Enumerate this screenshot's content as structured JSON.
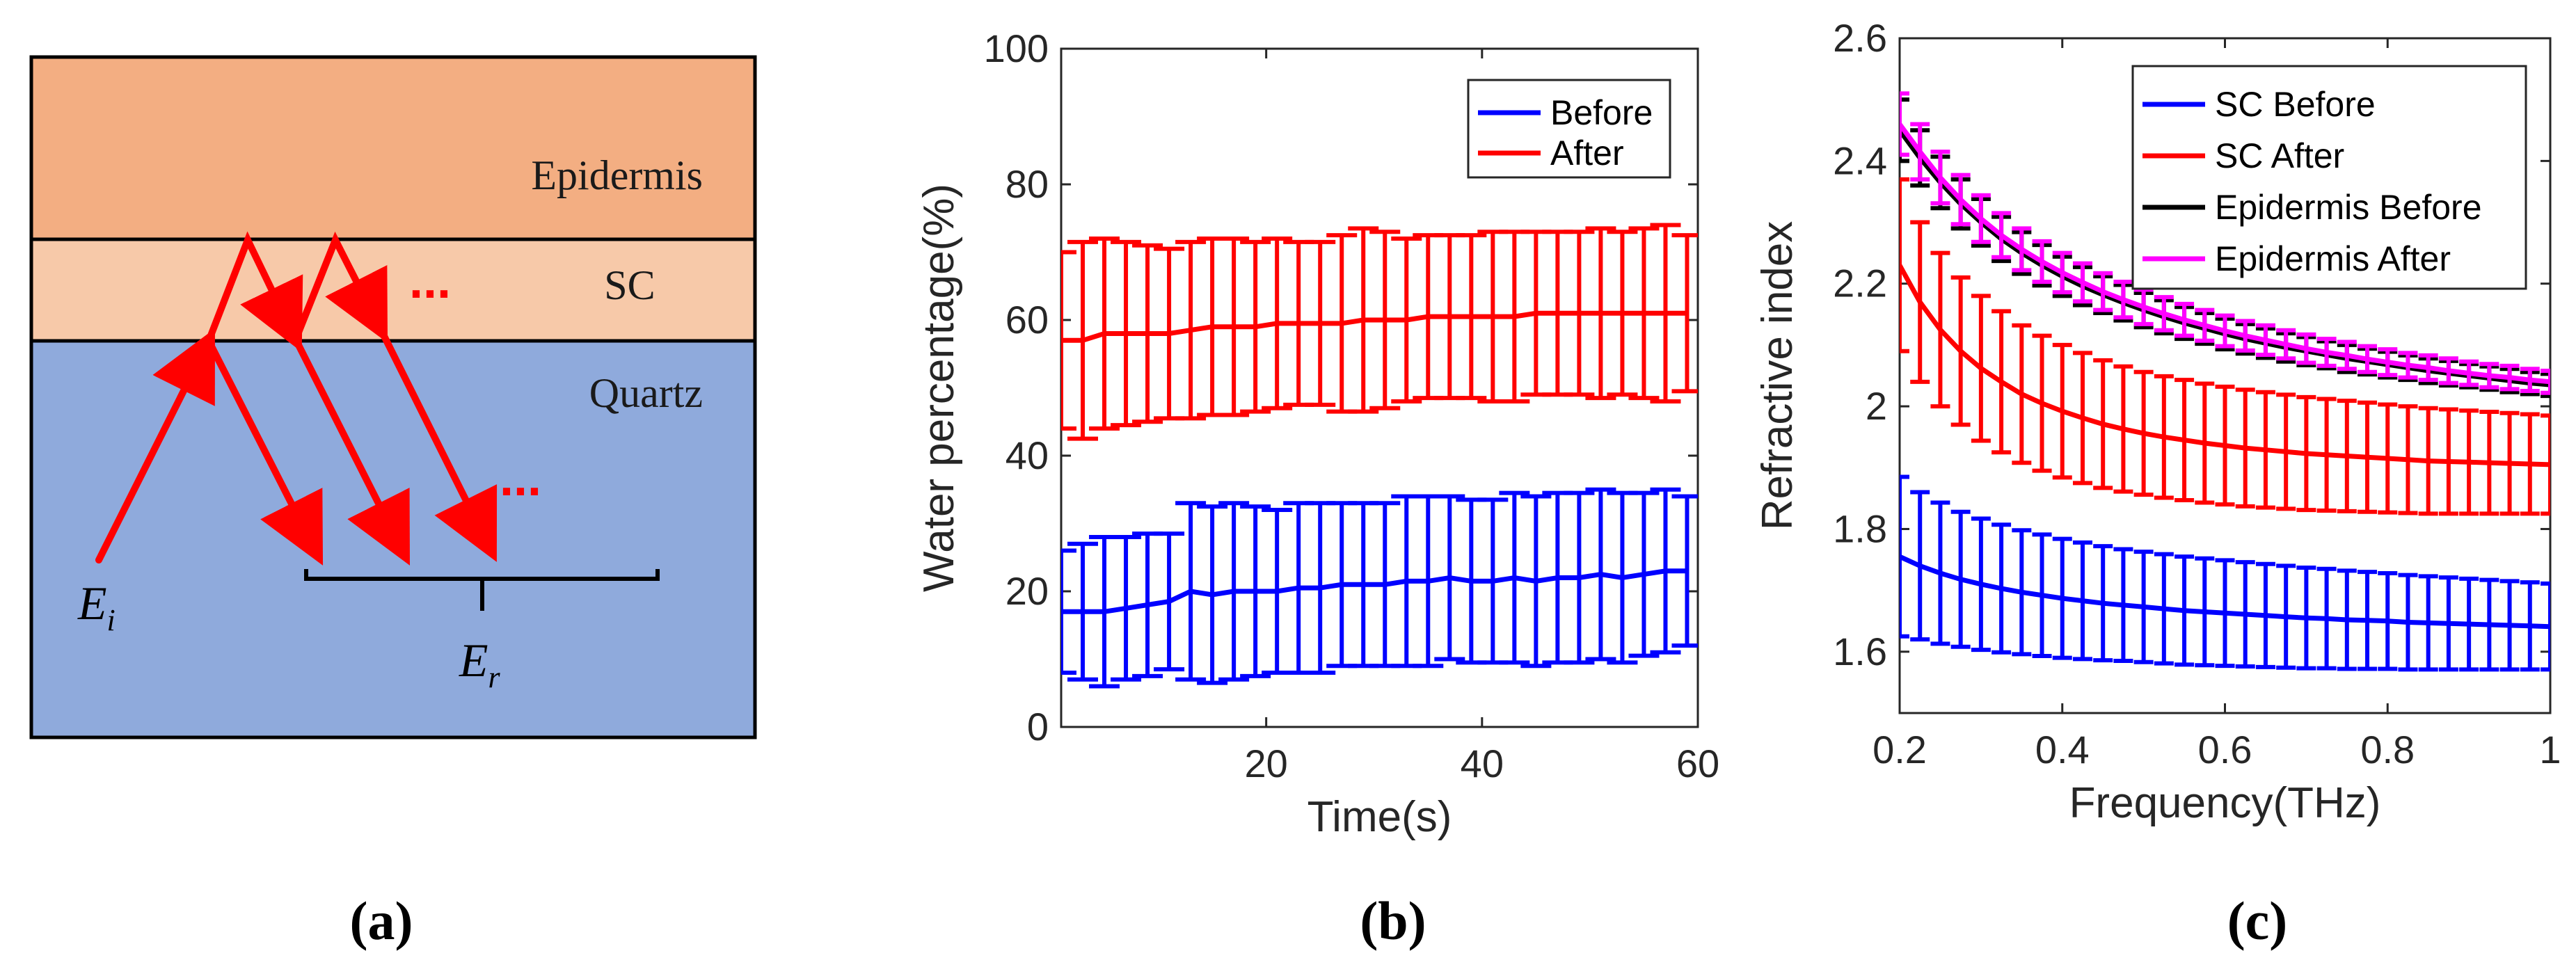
{
  "panel_a": {
    "layers": [
      "Epidermis",
      "SC",
      "Quartz"
    ],
    "ellipsis": "...",
    "incident_label": "E",
    "incident_sub": "i",
    "reflected_label": "E",
    "reflected_sub": "r",
    "colors": {
      "epidermis": "#f3ae82",
      "sc": "#f7c9a9",
      "quartz": "#8faadc",
      "ray": "#ff0000"
    },
    "caption": "(a)"
  },
  "panel_b": {
    "caption": "(b)"
  },
  "panel_c": {
    "caption": "(c)"
  },
  "chart_data": [
    {
      "type": "line",
      "title": "",
      "xlabel": "Time(s)",
      "ylabel": "Water percentage(%)",
      "xlim": [
        1,
        60
      ],
      "ylim": [
        0,
        100
      ],
      "xticks": [
        20,
        40,
        60
      ],
      "yticks": [
        0,
        20,
        40,
        60,
        80,
        100
      ],
      "legend_position": "top-right",
      "error_bars": true,
      "x": [
        1,
        3,
        5,
        7,
        9,
        11,
        13,
        15,
        17,
        19,
        21,
        23,
        25,
        27,
        29,
        31,
        33,
        35,
        37,
        39,
        41,
        43,
        45,
        47,
        49,
        51,
        53,
        55,
        57,
        59
      ],
      "series": [
        {
          "name": "Before",
          "color": "#0000ff",
          "values": [
            17,
            17,
            17,
            17.5,
            18,
            18.5,
            20,
            19.5,
            20,
            20,
            20,
            20.5,
            20.5,
            21,
            21,
            21,
            21.5,
            21.5,
            22,
            21.5,
            21.5,
            22,
            21.5,
            22,
            22,
            22.5,
            22,
            22.5,
            23,
            23
          ],
          "err": [
            9,
            10,
            11,
            10.5,
            10.5,
            10,
            13,
            13,
            13,
            12.5,
            12,
            12.5,
            12.5,
            12,
            12,
            12,
            12.5,
            12.5,
            12,
            12,
            12,
            12.5,
            12.5,
            12.5,
            12.5,
            12.5,
            12.5,
            12,
            12,
            11
          ]
        },
        {
          "name": "After",
          "color": "#ff0000",
          "values": [
            57,
            57,
            58,
            58,
            58,
            58,
            58.5,
            59,
            59,
            59,
            59.5,
            59.5,
            59.5,
            59.5,
            60,
            60,
            60,
            60.5,
            60.5,
            60.5,
            60.5,
            60.5,
            61,
            61,
            61,
            61,
            61,
            61,
            61,
            61
          ],
          "err": [
            13,
            14.5,
            14,
            13.5,
            13,
            12.5,
            13,
            13,
            13,
            12.5,
            12.5,
            12,
            12,
            13,
            13.5,
            13,
            12,
            12,
            12,
            12,
            12.5,
            12.5,
            12,
            12,
            12,
            12.5,
            12,
            12.5,
            13,
            11.5
          ]
        }
      ]
    },
    {
      "type": "line",
      "title": "",
      "xlabel": "Frequency(THz)",
      "ylabel": "Refractive index",
      "xlim": [
        0.2,
        1
      ],
      "ylim": [
        1.5,
        2.6
      ],
      "xticks": [
        0.2,
        0.4,
        0.6,
        0.8,
        1
      ],
      "xtick_labels": [
        "0.2",
        "0.4",
        "0.6",
        "0.8",
        "1"
      ],
      "yticks": [
        1.6,
        1.8,
        2,
        2.2,
        2.4,
        2.6
      ],
      "ytick_labels": [
        "1.6",
        "1.8",
        "2",
        "2.2",
        "2.4",
        "2.6"
      ],
      "legend_position": "top-right",
      "error_bars": true,
      "x": [
        0.2,
        0.225,
        0.25,
        0.275,
        0.3,
        0.325,
        0.35,
        0.375,
        0.4,
        0.425,
        0.45,
        0.475,
        0.5,
        0.525,
        0.55,
        0.575,
        0.6,
        0.625,
        0.65,
        0.675,
        0.7,
        0.725,
        0.75,
        0.775,
        0.8,
        0.825,
        0.85,
        0.875,
        0.9,
        0.925,
        0.95,
        0.975,
        1.0
      ],
      "series": [
        {
          "name": "SC Before",
          "color": "#0000ff",
          "values": [
            1.755,
            1.74,
            1.728,
            1.718,
            1.71,
            1.703,
            1.697,
            1.692,
            1.687,
            1.683,
            1.679,
            1.676,
            1.673,
            1.67,
            1.667,
            1.665,
            1.663,
            1.661,
            1.659,
            1.657,
            1.655,
            1.654,
            1.652,
            1.651,
            1.65,
            1.648,
            1.647,
            1.646,
            1.645,
            1.644,
            1.643,
            1.642,
            1.641
          ],
          "err": [
            0.13,
            0.12,
            0.115,
            0.11,
            0.107,
            0.104,
            0.101,
            0.099,
            0.097,
            0.095,
            0.093,
            0.091,
            0.09,
            0.089,
            0.088,
            0.087,
            0.086,
            0.085,
            0.084,
            0.083,
            0.082,
            0.081,
            0.08,
            0.079,
            0.078,
            0.077,
            0.076,
            0.075,
            0.074,
            0.073,
            0.072,
            0.071,
            0.07
          ]
        },
        {
          "name": "SC After",
          "color": "#ff0000",
          "values": [
            2.23,
            2.17,
            2.125,
            2.09,
            2.062,
            2.04,
            2.02,
            2.005,
            1.992,
            1.981,
            1.971,
            1.963,
            1.956,
            1.95,
            1.945,
            1.94,
            1.936,
            1.932,
            1.929,
            1.926,
            1.923,
            1.921,
            1.919,
            1.917,
            1.915,
            1.913,
            1.911,
            1.91,
            1.909,
            1.908,
            1.907,
            1.906,
            1.905
          ],
          "err": [
            0.14,
            0.13,
            0.125,
            0.12,
            0.118,
            0.115,
            0.112,
            0.11,
            0.108,
            0.106,
            0.104,
            0.102,
            0.1,
            0.099,
            0.098,
            0.097,
            0.096,
            0.095,
            0.094,
            0.093,
            0.092,
            0.091,
            0.09,
            0.089,
            0.088,
            0.087,
            0.086,
            0.085,
            0.084,
            0.083,
            0.082,
            0.081,
            0.08
          ]
        },
        {
          "name": "Epidermis Before",
          "color": "#000000",
          "values": [
            2.45,
            2.405,
            2.365,
            2.33,
            2.3,
            2.273,
            2.25,
            2.23,
            2.212,
            2.196,
            2.182,
            2.169,
            2.157,
            2.146,
            2.136,
            2.127,
            2.118,
            2.11,
            2.103,
            2.096,
            2.09,
            2.084,
            2.078,
            2.073,
            2.068,
            2.063,
            2.058,
            2.054,
            2.05,
            2.046,
            2.042,
            2.038,
            2.035
          ],
          "err": [
            0.05,
            0.045,
            0.042,
            0.04,
            0.038,
            0.036,
            0.034,
            0.033,
            0.032,
            0.031,
            0.03,
            0.029,
            0.028,
            0.027,
            0.026,
            0.025,
            0.025,
            0.024,
            0.024,
            0.023,
            0.023,
            0.022,
            0.022,
            0.021,
            0.021,
            0.02,
            0.02,
            0.02,
            0.019,
            0.019,
            0.019,
            0.018,
            0.018
          ]
        },
        {
          "name": "Epidermis After",
          "color": "#ff00ff",
          "values": [
            2.46,
            2.415,
            2.373,
            2.337,
            2.306,
            2.279,
            2.256,
            2.236,
            2.218,
            2.202,
            2.187,
            2.174,
            2.162,
            2.151,
            2.141,
            2.132,
            2.123,
            2.115,
            2.108,
            2.101,
            2.094,
            2.088,
            2.083,
            2.077,
            2.072,
            2.067,
            2.063,
            2.058,
            2.054,
            2.05,
            2.047,
            2.043,
            2.04
          ],
          "err": [
            0.05,
            0.045,
            0.042,
            0.04,
            0.038,
            0.036,
            0.034,
            0.033,
            0.032,
            0.031,
            0.03,
            0.029,
            0.028,
            0.027,
            0.026,
            0.025,
            0.025,
            0.024,
            0.024,
            0.023,
            0.023,
            0.022,
            0.022,
            0.021,
            0.021,
            0.02,
            0.02,
            0.02,
            0.019,
            0.019,
            0.019,
            0.018,
            0.018
          ]
        }
      ]
    }
  ]
}
